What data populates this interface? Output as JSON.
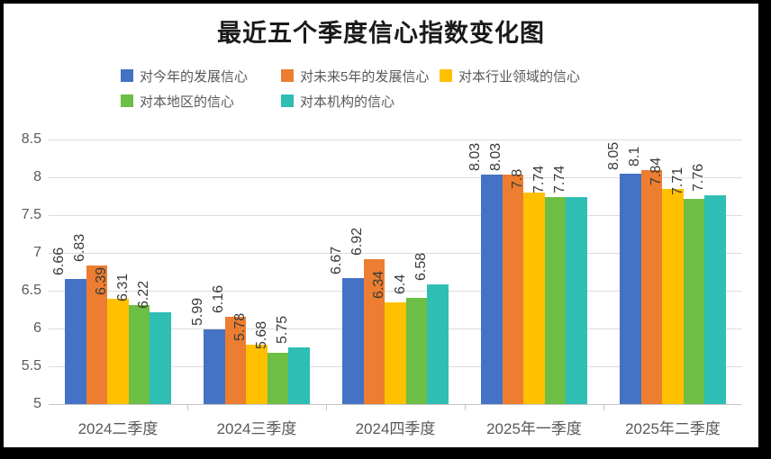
{
  "title": "最近五个季度信心指数变化图",
  "frame": {
    "border_color": "#000000",
    "background": "#FFFFFF"
  },
  "style": {
    "title_color": "#1a1a1a",
    "axis_label_color": "#595959",
    "data_label_color": "#3a3a3a",
    "gridline_color": "#dcdcdc",
    "axis_line_color": "#c6c6c6"
  },
  "chart_data": {
    "type": "bar",
    "title": "最近五个季度信心指数变化图",
    "categories": [
      "2024二季度",
      "2024三季度",
      "2024四季度",
      "2025年一季度",
      "2025年二季度"
    ],
    "series": [
      {
        "name": "对今年的发展信心",
        "color": "#4472C4",
        "values": [
          6.66,
          5.99,
          6.67,
          8.03,
          8.05
        ]
      },
      {
        "name": "对未来5年的发展信心",
        "color": "#ED7D31",
        "values": [
          6.83,
          6.16,
          6.92,
          8.03,
          8.1
        ]
      },
      {
        "name": "对本行业领域的信心",
        "color": "#FFC000",
        "values": [
          6.39,
          5.78,
          6.34,
          7.8,
          7.84
        ]
      },
      {
        "name": "对本地区的信心",
        "color": "#6CBE45",
        "values": [
          6.31,
          5.68,
          6.4,
          7.74,
          7.71
        ]
      },
      {
        "name": "对本机构的信心",
        "color": "#2FBEB4",
        "values": [
          6.22,
          5.75,
          6.58,
          7.74,
          7.76
        ]
      }
    ],
    "ylim": [
      5,
      8.5
    ],
    "ytick_step": 0.5,
    "ytick_labels": [
      "5",
      "5.5",
      "6",
      "6.5",
      "7",
      "7.5",
      "8",
      "8.5"
    ],
    "grid": true,
    "legend_position": "top",
    "data_labels": true,
    "data_labels_rotation": -90,
    "xlabel": "",
    "ylabel": ""
  }
}
